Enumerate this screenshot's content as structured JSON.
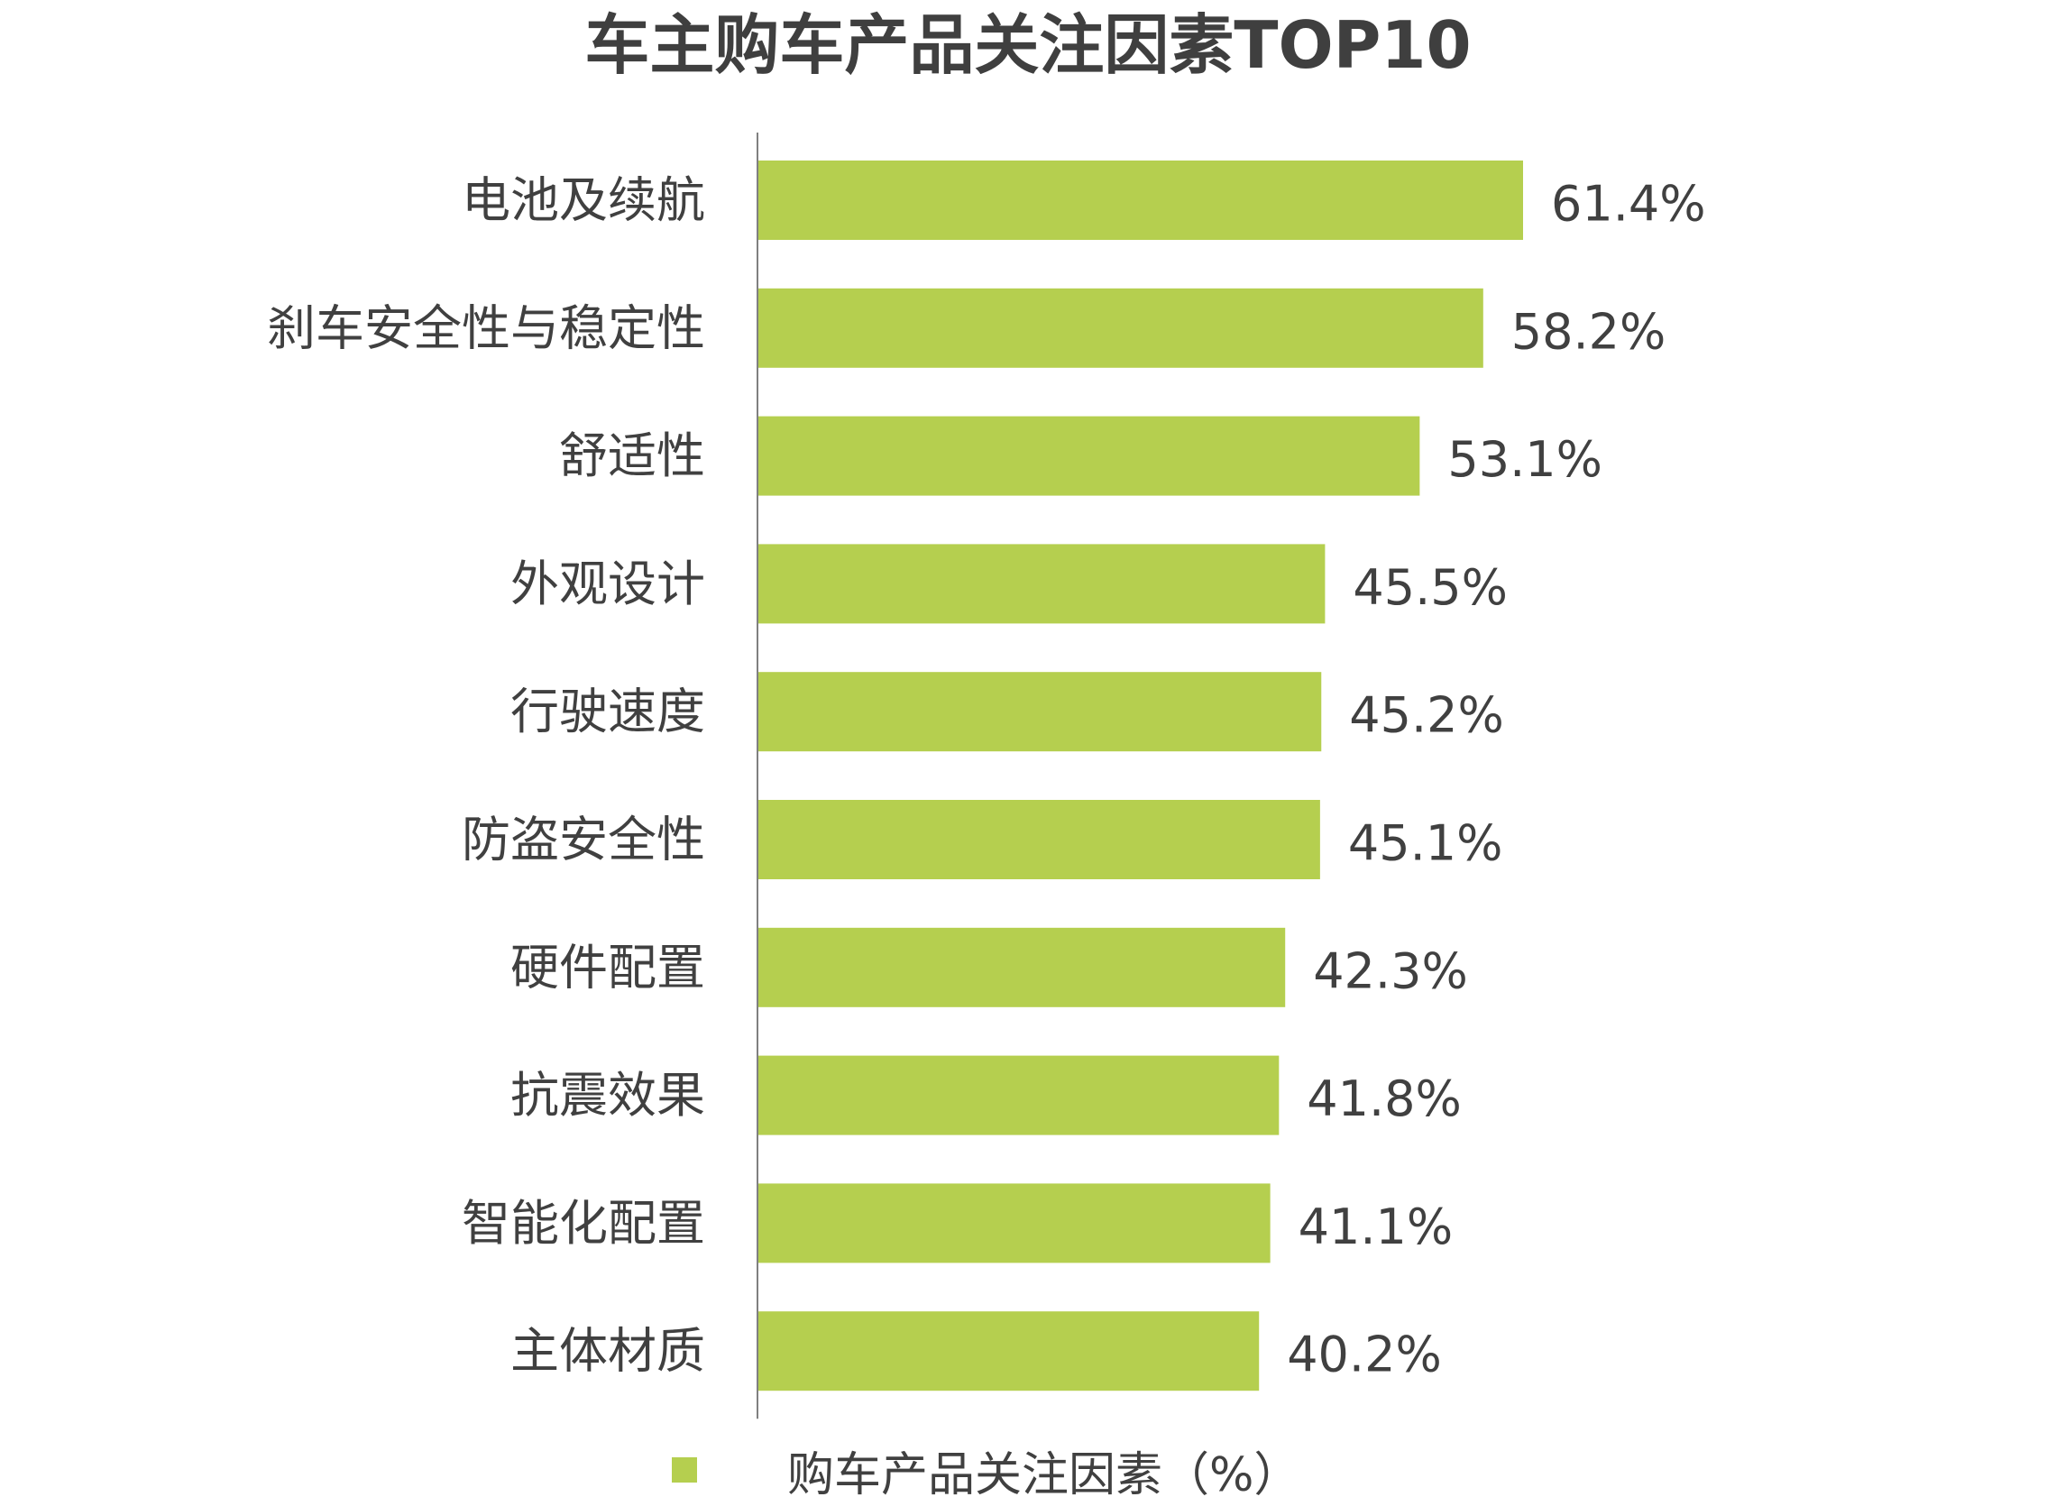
{
  "chart_data": {
    "type": "bar",
    "orientation": "horizontal",
    "title": "车主购车产品关注因素TOP10",
    "categories": [
      "电池及续航",
      "刹车安全性与稳定性",
      "舒适性",
      "外观设计",
      "行驶速度",
      "防盗安全性",
      "硬件配置",
      "抗震效果",
      "智能化配置",
      "主体材质"
    ],
    "series": [
      {
        "name": "购车产品关注因素（%）",
        "values": [
          61.4,
          58.2,
          53.1,
          45.5,
          45.2,
          45.1,
          42.3,
          41.8,
          41.1,
          40.2
        ],
        "labels": [
          "61.4%",
          "58.2%",
          "53.1%",
          "45.5%",
          "45.2%",
          "45.1%",
          "42.3%",
          "41.8%",
          "41.1%",
          "40.2%"
        ]
      }
    ],
    "xlim": [
      0,
      100
    ],
    "grid": false,
    "legend": "bottom",
    "colors": {
      "bar": "#b5cf4f",
      "axis": "#808080",
      "text": "#404040"
    }
  }
}
